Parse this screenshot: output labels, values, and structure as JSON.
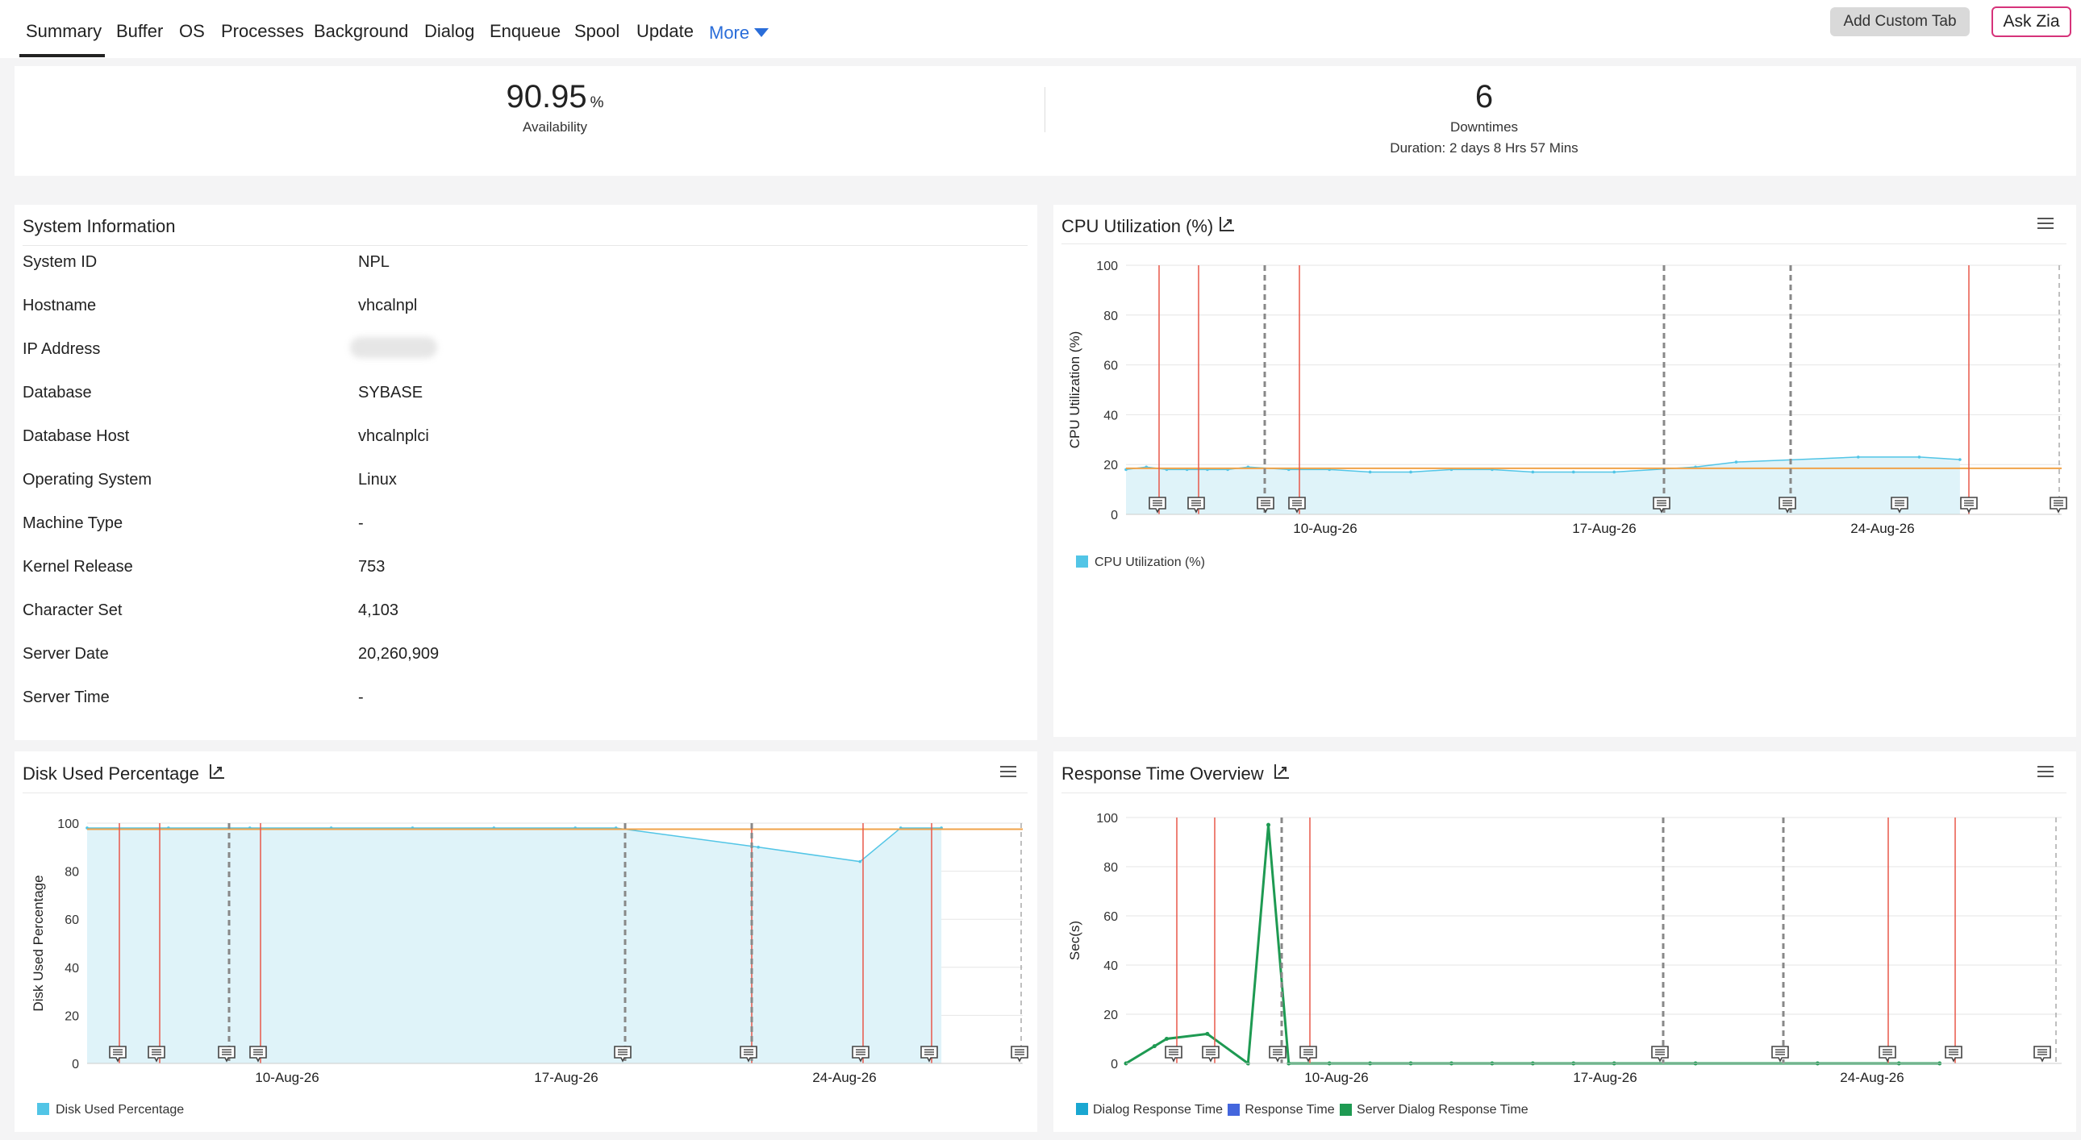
{
  "tabs": [
    "Summary",
    "Buffer",
    "OS",
    "Processes",
    "Background",
    "Dialog",
    "Enqueue",
    "Spool",
    "Update"
  ],
  "more_label": "More",
  "buttons": {
    "add_custom_tab": "Add Custom Tab",
    "ask_zia": "Ask Zia"
  },
  "availability": {
    "value": "90.95",
    "unit": "%",
    "label": "Availability",
    "downtimes_value": "6",
    "downtimes_label": "Downtimes",
    "duration": "Duration: 2 days 8 Hrs 57 Mins"
  },
  "system_info": {
    "title": "System Information",
    "rows": [
      {
        "label": "System ID",
        "value": "NPL"
      },
      {
        "label": "Hostname",
        "value": "vhcalnpl"
      },
      {
        "label": "IP Address",
        "value": ""
      },
      {
        "label": "Database",
        "value": "SYBASE"
      },
      {
        "label": "Database Host",
        "value": "vhcalnplci"
      },
      {
        "label": "Operating System",
        "value": "Linux"
      },
      {
        "label": "Machine Type",
        "value": "-"
      },
      {
        "label": "Kernel Release",
        "value": "753"
      },
      {
        "label": "Character Set",
        "value": "4,103"
      },
      {
        "label": "Server Date",
        "value": "20,260,909"
      },
      {
        "label": "Server Time",
        "value": "-"
      }
    ]
  },
  "colors": {
    "area_fill": "#dff3f9",
    "cpu_line": "#52c5e6",
    "threshold": "#f0a34a",
    "outage_red": "#e8584a",
    "maint_dash": "#888888",
    "green": "#1e9a52",
    "blue": "#4466dd"
  },
  "chart_data": [
    {
      "type": "area",
      "title": "CPU Utilization (%)",
      "ylabel": "CPU Utilization (%)",
      "ylim": [
        0,
        100
      ],
      "yticks": [
        0,
        20,
        40,
        60,
        80,
        100
      ],
      "xticks": [
        "10-Aug-26",
        "17-Aug-26",
        "24-Aug-26"
      ],
      "series": [
        {
          "name": "CPU Utilization (%)",
          "color": "#52c5e6",
          "x": [
            0.0,
            0.5,
            1.0,
            1.5,
            2.0,
            2.5,
            3.0,
            4.0,
            5.0,
            6.0,
            7.0,
            8.0,
            9.0,
            10.0,
            11.0,
            12.0,
            14.0,
            15.0,
            18.0,
            19.5,
            20.5
          ],
          "y": [
            18,
            19,
            18,
            18,
            18,
            18,
            19,
            18,
            18,
            17,
            17,
            18,
            18,
            17,
            17,
            17,
            19,
            21,
            23,
            23,
            22
          ]
        }
      ],
      "threshold": 18.5,
      "legend": "bottom-left"
    },
    {
      "type": "area",
      "title": "Disk Used Percentage",
      "ylabel": "Disk Used Percentage",
      "ylim": [
        0,
        100
      ],
      "yticks": [
        0,
        20,
        40,
        60,
        80,
        100
      ],
      "xticks": [
        "10-Aug-26",
        "17-Aug-26",
        "24-Aug-26"
      ],
      "series": [
        {
          "name": "Disk Used Percentage",
          "color": "#52c5e6",
          "x": [
            0.0,
            2.0,
            4.0,
            6.0,
            8.0,
            10.0,
            12.0,
            13.0,
            16.5,
            19.0,
            20.0,
            21.0
          ],
          "y": [
            98,
            98,
            98,
            98,
            98,
            98,
            98,
            98,
            90,
            84,
            98,
            98
          ]
        }
      ],
      "threshold": 97.5,
      "legend": "bottom-left"
    },
    {
      "type": "line",
      "title": "Response Time Overview",
      "ylabel": "Sec(s)",
      "ylim": [
        0,
        100
      ],
      "yticks": [
        0,
        20,
        40,
        60,
        80,
        100
      ],
      "xticks": [
        "10-Aug-26",
        "17-Aug-26",
        "24-Aug-26"
      ],
      "series": [
        {
          "name": "Dialog Response Time",
          "color": "#1aa7d1",
          "x": [],
          "y": []
        },
        {
          "name": "Response Time",
          "color": "#4466dd",
          "x": [],
          "y": []
        },
        {
          "name": "Server Dialog Response Time",
          "color": "#1e9a52",
          "x": [
            0.0,
            0.7,
            1.0,
            2.0,
            3.0,
            3.5,
            4.0,
            5.0,
            6.0,
            7.0,
            8.0,
            9.0,
            10.0,
            11.0,
            12.0,
            14.0,
            17.0,
            19.0,
            20.0
          ],
          "y": [
            0,
            7,
            10,
            12,
            0,
            97,
            0,
            0,
            0,
            0,
            0,
            0,
            0,
            0,
            0,
            0,
            0,
            0,
            0
          ]
        }
      ],
      "legend": "bottom-left"
    }
  ]
}
